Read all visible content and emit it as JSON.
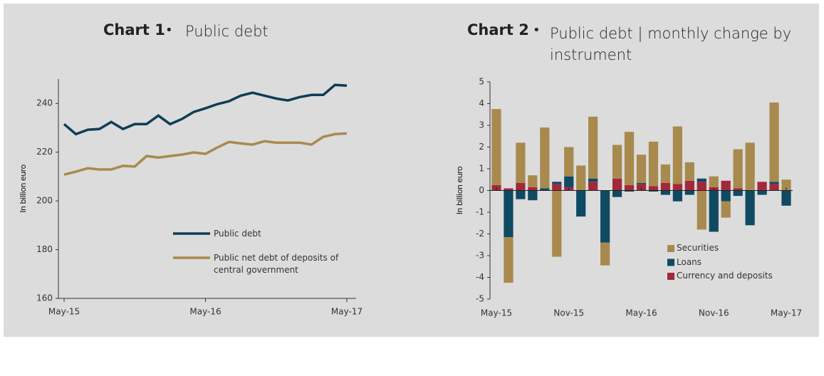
{
  "chart_data": [
    {
      "type": "line",
      "chart_label": "Chart 1",
      "title": "Public debt",
      "ylabel": "In billion euro",
      "categories": [
        "May-15",
        null,
        null,
        null,
        null,
        null,
        null,
        null,
        null,
        null,
        null,
        null,
        "May-16",
        null,
        null,
        null,
        null,
        null,
        null,
        null,
        null,
        null,
        null,
        null,
        "May-17"
      ],
      "ylim": [
        160,
        250
      ],
      "yticks": [
        160,
        180,
        200,
        220,
        240
      ],
      "grid": false,
      "series": [
        {
          "name": "Public debt",
          "color": "#0f3d56",
          "values": [
            231.5,
            227.4,
            229.2,
            229.5,
            232.4,
            229.5,
            231.5,
            231.5,
            235,
            231.5,
            233.6,
            236.5,
            238,
            239.7,
            240.9,
            243.2,
            244.4,
            243.2,
            242,
            241.2,
            242.6,
            243.5,
            243.5,
            247.6,
            247.3
          ]
        },
        {
          "name": "Public net debt of deposits of central government",
          "color": "#a88a4e",
          "values": [
            210.8,
            212,
            213.4,
            212.9,
            212.9,
            214.4,
            214.1,
            218.4,
            217.8,
            218.4,
            219,
            219.9,
            219.3,
            221.9,
            224.2,
            223.6,
            223.1,
            224.5,
            223.9,
            223.9,
            223.9,
            223.1,
            226.3,
            227.4,
            227.7
          ]
        }
      ]
    },
    {
      "type": "bar",
      "stacked": true,
      "chart_label": "Chart 2",
      "title": "Public debt | monthly change by instrument",
      "ylabel": "In billion euro",
      "categories": [
        "May-15",
        null,
        null,
        null,
        null,
        null,
        "Nov-15",
        null,
        null,
        null,
        null,
        null,
        "May-16",
        null,
        null,
        null,
        null,
        null,
        "Nov-16",
        null,
        null,
        null,
        null,
        null,
        "May-17"
      ],
      "ylim": [
        -5,
        5
      ],
      "yticks": [
        -5,
        -4,
        -3,
        -2,
        -1,
        0,
        1,
        2,
        3,
        4,
        5
      ],
      "grid": false,
      "series": [
        {
          "name": "Securities",
          "color": "#a88a4e",
          "values": [
            3.5,
            -2.1,
            1.85,
            0.55,
            2.8,
            -3.05,
            1.35,
            1.15,
            2.85,
            -1.05,
            1.55,
            2.45,
            1.3,
            2.05,
            0.85,
            2.65,
            0.85,
            -1.8,
            0.5,
            -0.75,
            1.8,
            2.2,
            0,
            3.65,
            0.5
          ]
        },
        {
          "name": "Loans",
          "color": "#0f4a63",
          "values": [
            0,
            -2.15,
            -0.4,
            -0.45,
            0.1,
            0.1,
            0.5,
            -1.2,
            0.15,
            -2.4,
            -0.3,
            -0.05,
            0.05,
            -0.05,
            -0.2,
            -0.5,
            -0.2,
            0.15,
            -1.9,
            -0.5,
            -0.25,
            -1.6,
            -0.2,
            0.1,
            -0.7
          ]
        },
        {
          "name": "Currency and deposits",
          "color": "#a3283a",
          "values": [
            0.25,
            0.1,
            0.35,
            0.15,
            0,
            0.3,
            0.15,
            0,
            0.4,
            0,
            0.55,
            0.25,
            0.3,
            0.2,
            0.35,
            0.3,
            0.45,
            0.4,
            0.15,
            0.45,
            0.1,
            0,
            0.4,
            0.3,
            0
          ]
        }
      ]
    }
  ]
}
